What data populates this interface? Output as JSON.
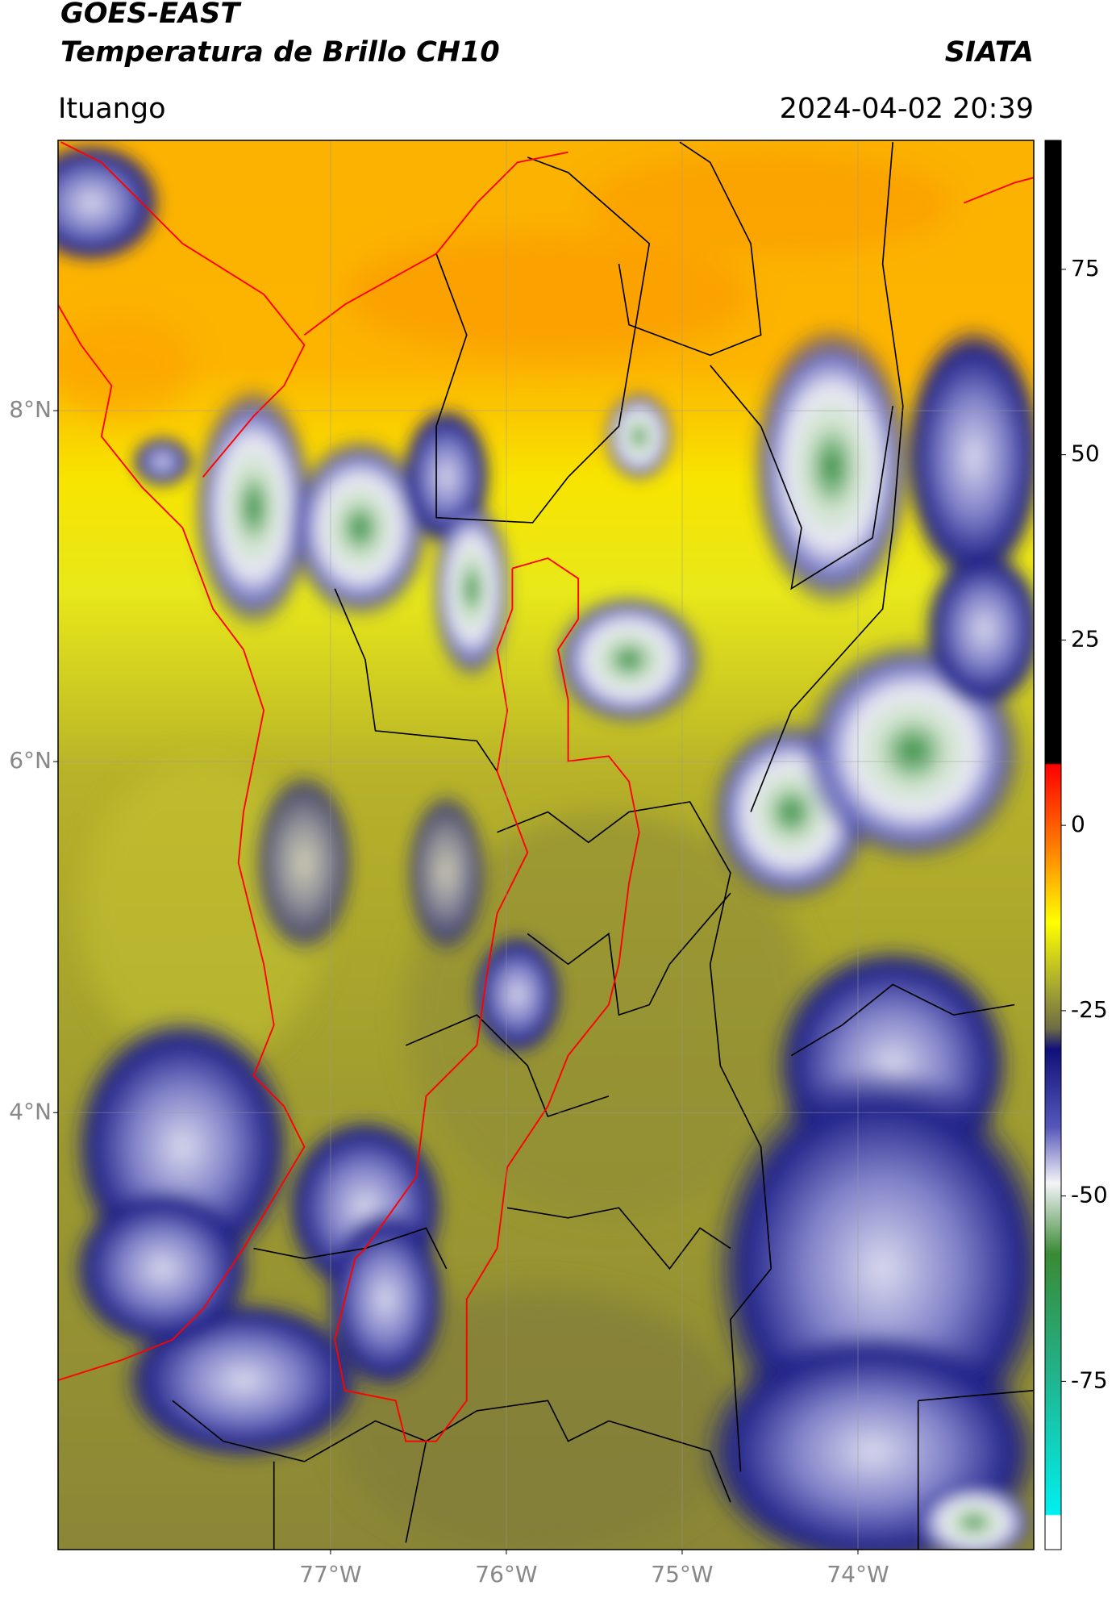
{
  "header": {
    "title": "GOES-EAST",
    "subtitle": "Temperatura de Brillo CH10",
    "source": "SIATA",
    "location": "Ituango",
    "timestamp": "2024-04-02 20:39"
  },
  "map": {
    "xlim": [
      -78.55,
      -73.0
    ],
    "ylim": [
      1.51,
      9.54
    ],
    "xticks": [
      {
        "value": -77,
        "label": "77°W"
      },
      {
        "value": -76,
        "label": "76°W"
      },
      {
        "value": -75,
        "label": "75°W"
      },
      {
        "value": -74,
        "label": "74°W"
      }
    ],
    "yticks": [
      {
        "value": 4,
        "label": "4°N"
      },
      {
        "value": 6,
        "label": "6°N"
      },
      {
        "value": 8,
        "label": "8°N"
      }
    ]
  },
  "colorbar": {
    "lim": [
      -97.7,
      92.4
    ],
    "ticks": [
      -75,
      -50,
      -25,
      0,
      25,
      50,
      75
    ]
  }
}
